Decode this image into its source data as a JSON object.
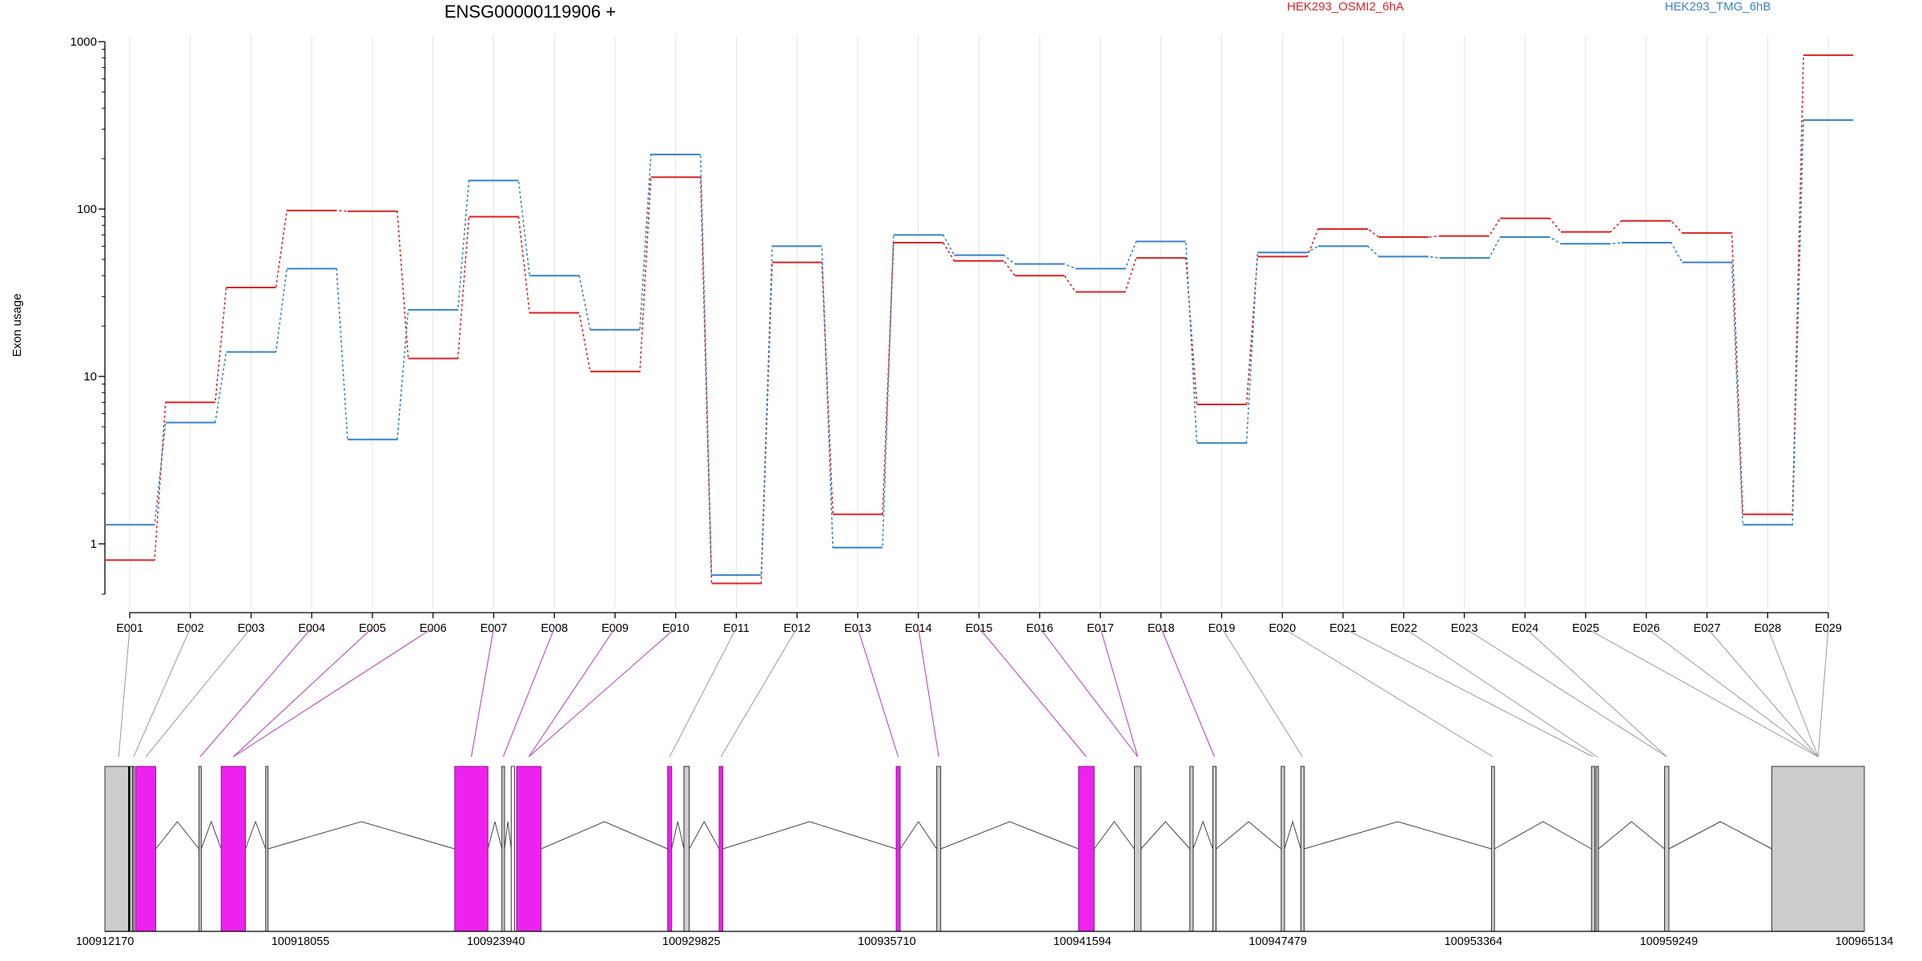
{
  "chart_data": {
    "type": "line",
    "title": "ENSG00000119906 +",
    "ylabel": "Exon usage",
    "yscale": "log",
    "ylim": [
      0.5,
      1000
    ],
    "yticks": [
      1,
      10,
      100,
      1000
    ],
    "ytick_labels": [
      "1",
      "10",
      "100",
      "1000"
    ],
    "categories": [
      "E001",
      "E002",
      "E003",
      "E004",
      "E005",
      "E006",
      "E007",
      "E008",
      "E009",
      "E010",
      "E011",
      "E012",
      "E013",
      "E014",
      "E015",
      "E016",
      "E017",
      "E018",
      "E019",
      "E020",
      "E021",
      "E022",
      "E023",
      "E024",
      "E025",
      "E026",
      "E027",
      "E028",
      "E029"
    ],
    "series": [
      {
        "name": "HEK293_OSMI2_6hA",
        "color": "#d62728",
        "values": [
          0.8,
          7.0,
          34,
          98,
          97,
          12.8,
          90,
          24,
          10.7,
          155,
          0.58,
          48,
          1.5,
          63,
          49,
          40,
          32,
          51,
          6.8,
          52,
          76,
          68,
          69,
          88,
          73,
          85,
          72,
          1.5,
          830
        ]
      },
      {
        "name": "HEK293_TMG_6hB",
        "color": "#3b82c4",
        "values": [
          1.3,
          5.3,
          14,
          44,
          4.2,
          25,
          148,
          40,
          19,
          212,
          0.65,
          60,
          0.95,
          70,
          53,
          47,
          44,
          64,
          4.0,
          55,
          60,
          52,
          51,
          68,
          62,
          63,
          48,
          1.3,
          340
        ]
      }
    ],
    "grid": "vertical, light",
    "legend": "top, series names printed as colored text",
    "gene_model": {
      "x_axis_ticks": [
        "100912170",
        "100918055",
        "100923940",
        "100929825",
        "100935710",
        "100941594",
        "100947479",
        "100953364",
        "100959249",
        "100965134"
      ],
      "exon_highlight_color": "#ee22ee",
      "exon_default_color": "#cccccc",
      "highlighted_exons": [
        "E004",
        "E005",
        "E006",
        "E007",
        "E008",
        "E009",
        "E010",
        "E013",
        "E014",
        "E015",
        "E016",
        "E017",
        "E018"
      ]
    }
  }
}
